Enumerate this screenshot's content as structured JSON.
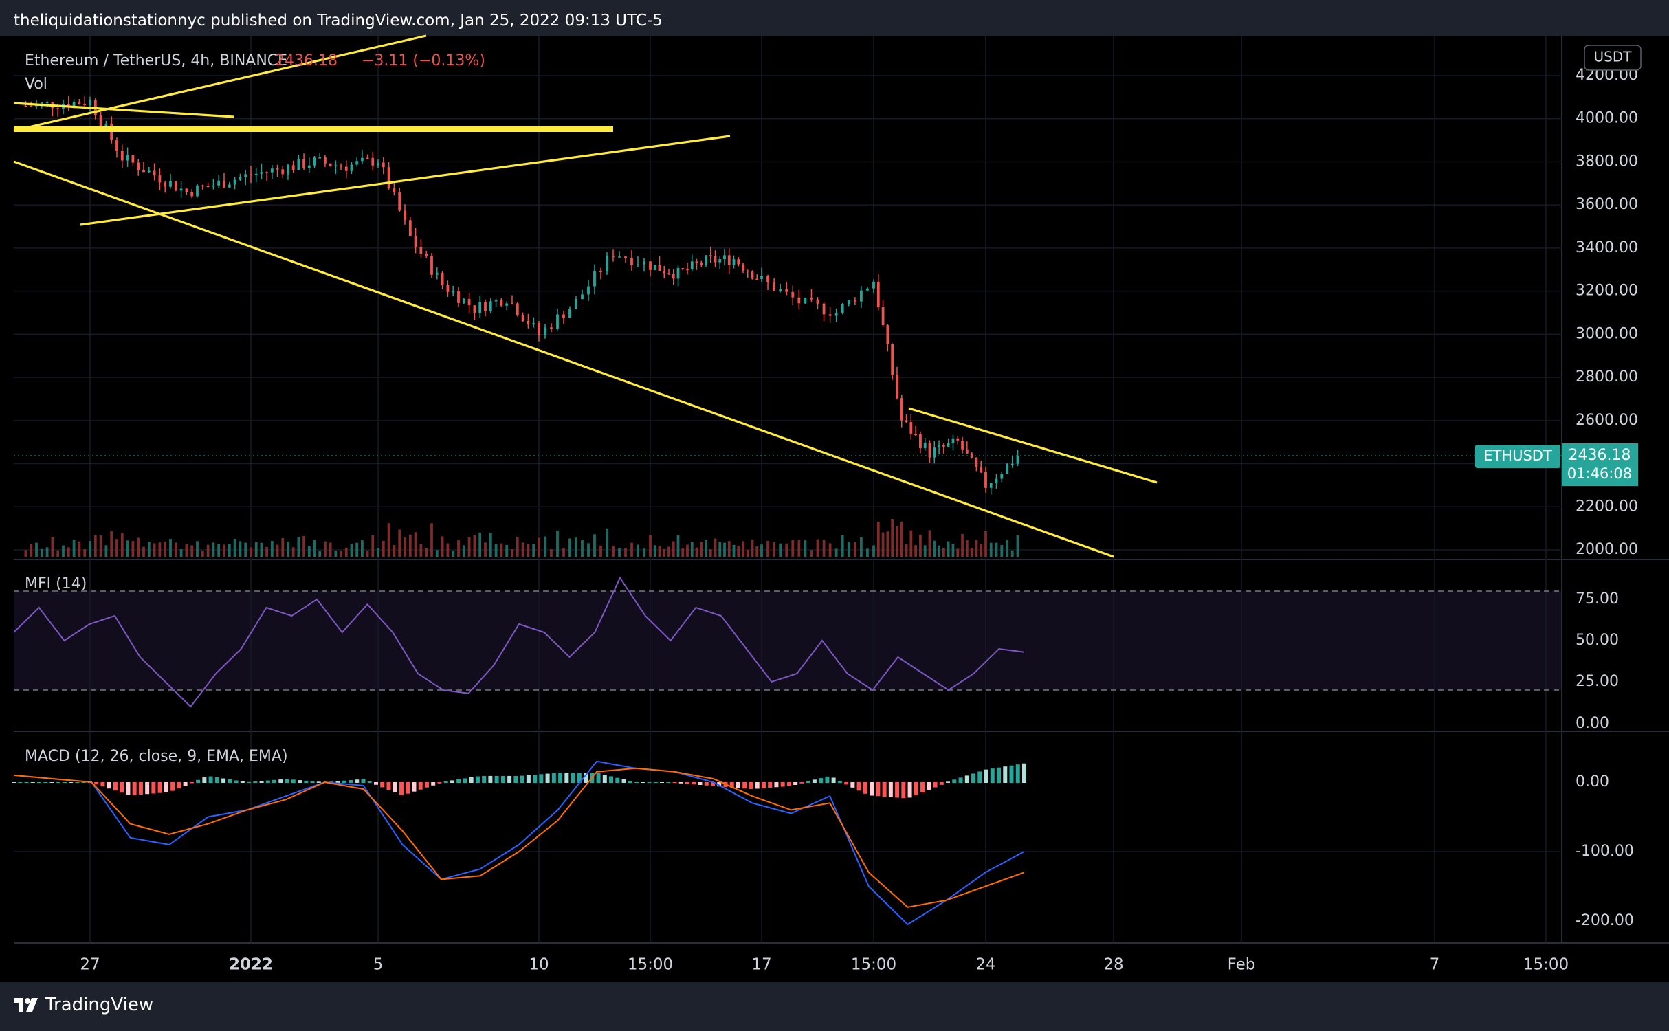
{
  "publish_line": "theliquidationstationnyc published on TradingView.com, Jan 25, 2022 09:13 UTC-5",
  "brand": "TradingView",
  "legend": {
    "symbol": "Ethereum / TetherUS, 4h, BINANCE",
    "last": "2436.18",
    "change": "−3.11 (−0.13%)",
    "vol": "Vol"
  },
  "currency_badge": "USDT",
  "price_tag": {
    "symbol": "ETHUSDT",
    "price": "2436.18",
    "countdown": "01:46:08"
  },
  "mfi_label": "MFI (14)",
  "macd_label": "MACD (12, 26, close, 9, EMA, EMA)",
  "colors": {
    "up": "#26a69a",
    "down": "#ef5350",
    "trendline": "#ffeb3b",
    "mfi": "#7e57c2",
    "macd": "#2962ff",
    "signal": "#ff6d00",
    "hist_up_strong": "#26a69a",
    "hist_up_weak": "#b2dfdb",
    "hist_down_strong": "#ff5252",
    "hist_down_weak": "#ffcdd2"
  },
  "chart_data": [
    {
      "type": "candlestick",
      "title": "Ethereum / TetherUS, 4h, BINANCE",
      "y_axis": {
        "min": 2000,
        "max": 4200,
        "ticks": [
          2000,
          2200,
          2400,
          2600,
          2800,
          3000,
          3200,
          3400,
          3600,
          3800,
          4000,
          4200
        ]
      },
      "x_axis": {
        "ticks": [
          "27",
          "2022",
          "5",
          "10",
          "15:00",
          "17",
          "15:00",
          "24",
          "28",
          "Feb",
          "7",
          "15:00"
        ]
      },
      "timeframe": "4h",
      "key_points": [
        {
          "date": "2021-12-25",
          "price": 4060
        },
        {
          "date": "2021-12-27",
          "price": 4080
        },
        {
          "date": "2021-12-28",
          "price": 3820
        },
        {
          "date": "2021-12-30",
          "price": 3660
        },
        {
          "date": "2022-01-01",
          "price": 3740
        },
        {
          "date": "2022-01-03",
          "price": 3800
        },
        {
          "date": "2022-01-04",
          "price": 3780
        },
        {
          "date": "2022-01-05",
          "price": 3810
        },
        {
          "date": "2022-01-06",
          "price": 3450
        },
        {
          "date": "2022-01-07",
          "price": 3230
        },
        {
          "date": "2022-01-08",
          "price": 3120
        },
        {
          "date": "2022-01-09",
          "price": 3170
        },
        {
          "date": "2022-01-10",
          "price": 3000
        },
        {
          "date": "2022-01-11",
          "price": 3150
        },
        {
          "date": "2022-01-12",
          "price": 3380
        },
        {
          "date": "2022-01-13",
          "price": 3320
        },
        {
          "date": "2022-01-14",
          "price": 3280
        },
        {
          "date": "2022-01-15",
          "price": 3340
        },
        {
          "date": "2022-01-16",
          "price": 3350
        },
        {
          "date": "2022-01-17",
          "price": 3250
        },
        {
          "date": "2022-01-18",
          "price": 3150
        },
        {
          "date": "2022-01-19",
          "price": 3100
        },
        {
          "date": "2022-01-20",
          "price": 3250
        },
        {
          "date": "2022-01-21",
          "price": 2600
        },
        {
          "date": "2022-01-22",
          "price": 2450
        },
        {
          "date": "2022-01-23",
          "price": 2500
        },
        {
          "date": "2022-01-24",
          "price": 2300
        },
        {
          "date": "2022-01-25",
          "price": 2436.18
        }
      ],
      "last_price": 2436.18,
      "annotations": "yellow hand-drawn trendlines"
    },
    {
      "type": "line",
      "title": "MFI (14)",
      "y_axis": {
        "min": 0,
        "max": 100,
        "ticks": [
          0,
          25,
          50,
          75
        ]
      },
      "bands": [
        20,
        80
      ],
      "values": [
        55,
        70,
        50,
        60,
        65,
        40,
        25,
        10,
        30,
        45,
        70,
        65,
        75,
        55,
        72,
        55,
        30,
        20,
        18,
        35,
        60,
        55,
        40,
        55,
        88,
        65,
        50,
        70,
        65,
        45,
        25,
        30,
        50,
        30,
        20,
        40,
        30,
        20,
        30,
        45,
        43
      ]
    },
    {
      "type": "line",
      "title": "MACD (12, 26, close, 9, EMA, EMA)",
      "y_axis": {
        "min": -200,
        "max": 0,
        "ticks": [
          -200,
          -100,
          0
        ]
      },
      "series": [
        {
          "name": "MACD",
          "values": [
            10,
            5,
            0,
            -80,
            -90,
            -50,
            -40,
            -20,
            0,
            -5,
            -90,
            -140,
            -125,
            -90,
            -40,
            30,
            20,
            15,
            0,
            -30,
            -45,
            -20,
            -150,
            -205,
            -170,
            -130,
            -100
          ]
        },
        {
          "name": "Signal",
          "values": [
            10,
            5,
            0,
            -60,
            -75,
            -60,
            -40,
            -25,
            0,
            -10,
            -70,
            -140,
            -135,
            -100,
            -55,
            15,
            20,
            15,
            5,
            -20,
            -40,
            -30,
            -130,
            -180,
            -170,
            -150,
            -130
          ]
        }
      ]
    }
  ]
}
